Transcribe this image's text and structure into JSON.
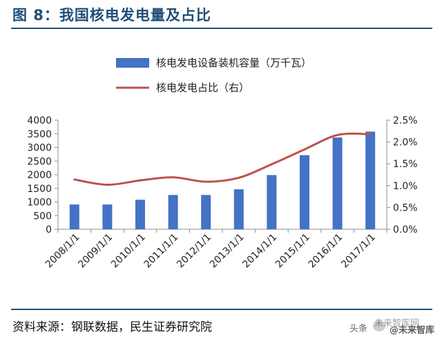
{
  "figure": {
    "title": "图 8：我国核电发电量及占比",
    "source": "资料来源：钢联数据，民生证券研究院"
  },
  "watermark": {
    "part_a": "头条",
    "part_b": "未来智库网",
    "part_c": "@未来智库"
  },
  "chart_data": {
    "type": "bar",
    "categories": [
      "2008/1/1",
      "2009/1/1",
      "2010/1/1",
      "2011/1/1",
      "2012/1/1",
      "2013/1/1",
      "2014/1/1",
      "2015/1/1",
      "2016/1/1",
      "2017/1/1"
    ],
    "series": [
      {
        "name": "核电发电设备装机容量（万千瓦）",
        "type": "bar",
        "axis": "left",
        "color": "#4472c4",
        "values": [
          908,
          908,
          1082,
          1257,
          1257,
          1466,
          1988,
          2717,
          3364,
          3582
        ]
      },
      {
        "name": "核电发电占比（右）",
        "type": "line",
        "axis": "right",
        "color": "#c0504d",
        "values": [
          0.0114,
          0.0102,
          0.0112,
          0.0119,
          0.0109,
          0.0118,
          0.0149,
          0.0183,
          0.0216,
          0.0218
        ]
      }
    ],
    "y_left": {
      "min": 0,
      "max": 4000,
      "step": 500,
      "tick_labels": [
        "0",
        "500",
        "1000",
        "1500",
        "2000",
        "2500",
        "3000",
        "3500",
        "4000"
      ]
    },
    "y_right": {
      "min": 0,
      "max": 0.025,
      "step": 0.005,
      "tick_labels": [
        "0.0%",
        "0.5%",
        "1.0%",
        "1.5%",
        "2.0%",
        "2.5%"
      ]
    },
    "grid": false,
    "legend_position": "top-center"
  }
}
